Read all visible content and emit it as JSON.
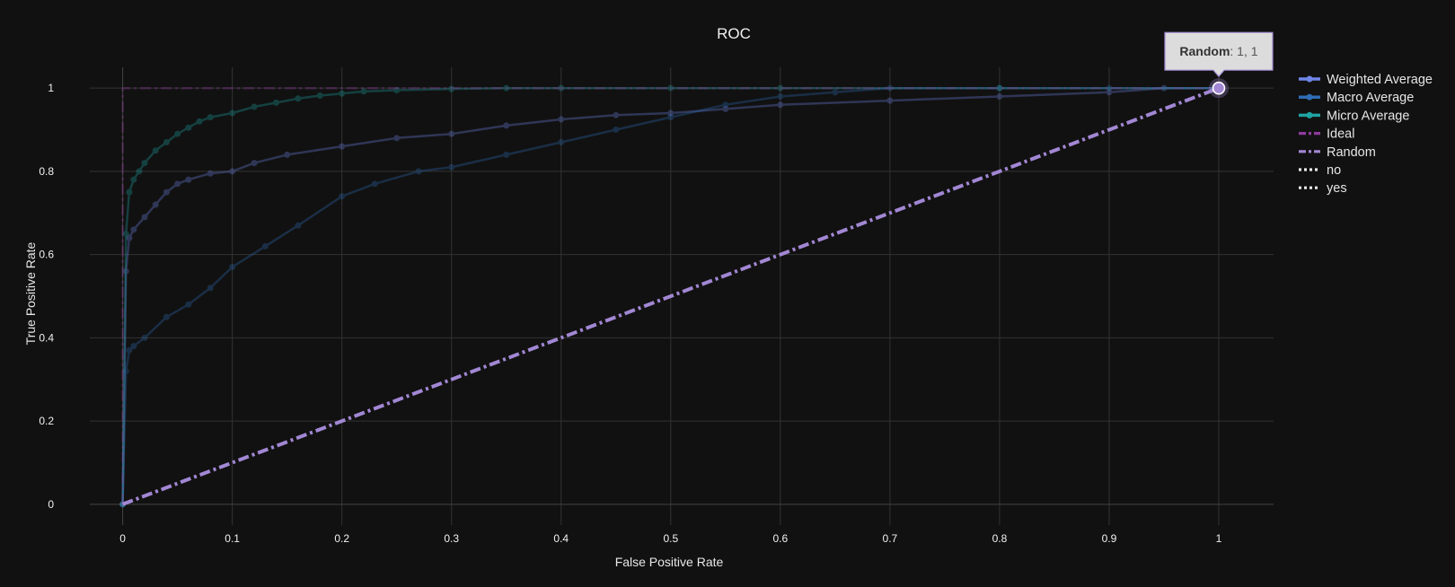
{
  "chart_data": {
    "type": "line",
    "title": "ROC",
    "xlabel": "False Positive Rate",
    "ylabel": "True Positive Rate",
    "xlim": [
      -0.03,
      1.05
    ],
    "ylim": [
      -0.05,
      1.05
    ],
    "xticks": [
      0,
      0.1,
      0.2,
      0.3,
      0.4,
      0.5,
      0.6,
      0.7,
      0.8,
      0.9,
      1
    ],
    "xtick_labels": [
      "0",
      "0.1",
      "0.2",
      "0.3",
      "0.4",
      "0.5",
      "0.6",
      "0.7",
      "0.8",
      "0.9",
      "1"
    ],
    "yticks": [
      0,
      0.2,
      0.4,
      0.6,
      0.8,
      1
    ],
    "ytick_labels": [
      "0",
      "0.2",
      "0.4",
      "0.6",
      "0.8",
      "1"
    ],
    "grid": true,
    "legend_position": "top-right",
    "series": [
      {
        "name": "Weighted Average",
        "color": "#6f86e8",
        "dash": "solid",
        "markers": true,
        "dimmed": true,
        "x": [
          0,
          0.003,
          0.006,
          0.01,
          0.02,
          0.03,
          0.04,
          0.05,
          0.06,
          0.08,
          0.1,
          0.12,
          0.15,
          0.2,
          0.25,
          0.3,
          0.35,
          0.4,
          0.45,
          0.5,
          0.55,
          0.6,
          0.7,
          0.8,
          0.9,
          0.95,
          1
        ],
        "y": [
          0,
          0.56,
          0.64,
          0.66,
          0.69,
          0.72,
          0.75,
          0.77,
          0.78,
          0.795,
          0.8,
          0.82,
          0.84,
          0.86,
          0.88,
          0.89,
          0.91,
          0.925,
          0.935,
          0.94,
          0.95,
          0.96,
          0.97,
          0.98,
          0.99,
          1,
          1
        ]
      },
      {
        "name": "Macro Average",
        "color": "#2f6db5",
        "dash": "solid",
        "markers": true,
        "dimmed": true,
        "x": [
          0,
          0.003,
          0.006,
          0.01,
          0.02,
          0.04,
          0.06,
          0.08,
          0.1,
          0.13,
          0.16,
          0.2,
          0.23,
          0.27,
          0.3,
          0.35,
          0.4,
          0.45,
          0.5,
          0.55,
          0.6,
          0.65,
          0.7,
          0.8,
          0.9,
          1
        ],
        "y": [
          0,
          0.32,
          0.37,
          0.38,
          0.4,
          0.45,
          0.48,
          0.52,
          0.57,
          0.62,
          0.67,
          0.74,
          0.77,
          0.8,
          0.81,
          0.84,
          0.87,
          0.9,
          0.93,
          0.96,
          0.98,
          0.99,
          1,
          1,
          1,
          1
        ]
      },
      {
        "name": "Micro Average",
        "color": "#1fa3a3",
        "dash": "solid",
        "markers": true,
        "dimmed": true,
        "x": [
          0,
          0.003,
          0.006,
          0.01,
          0.015,
          0.02,
          0.03,
          0.04,
          0.05,
          0.06,
          0.07,
          0.08,
          0.1,
          0.12,
          0.14,
          0.16,
          0.18,
          0.2,
          0.22,
          0.25,
          0.3,
          0.35,
          0.4,
          0.5,
          0.6,
          0.8,
          1
        ],
        "y": [
          0,
          0.65,
          0.75,
          0.78,
          0.8,
          0.82,
          0.85,
          0.87,
          0.89,
          0.905,
          0.92,
          0.93,
          0.94,
          0.955,
          0.965,
          0.975,
          0.982,
          0.987,
          0.992,
          0.995,
          0.998,
          1,
          1,
          1,
          1,
          1,
          1
        ]
      },
      {
        "name": "Ideal",
        "color": "#8e3a9e",
        "dash": "dashdot",
        "markers": false,
        "dimmed": true,
        "x": [
          0,
          0,
          1
        ],
        "y": [
          0,
          1,
          1
        ]
      },
      {
        "name": "Random",
        "color": "#a287d4",
        "dash": "dashdot",
        "markers": false,
        "dimmed": false,
        "x": [
          0,
          1
        ],
        "y": [
          0,
          1
        ]
      },
      {
        "name": "no",
        "color": "#e8e8e8",
        "dash": "dot",
        "markers": false,
        "dimmed": false,
        "x": [],
        "y": []
      },
      {
        "name": "yes",
        "color": "#e8e8e8",
        "dash": "dot",
        "markers": false,
        "dimmed": false,
        "x": [],
        "y": []
      }
    ],
    "tooltip": {
      "series": "Random",
      "x": 1,
      "y": 1,
      "label": "Random",
      "value": ": 1, 1"
    }
  },
  "colors": {
    "background": "#111111",
    "grid": "#333333",
    "zeroline": "#444444"
  }
}
